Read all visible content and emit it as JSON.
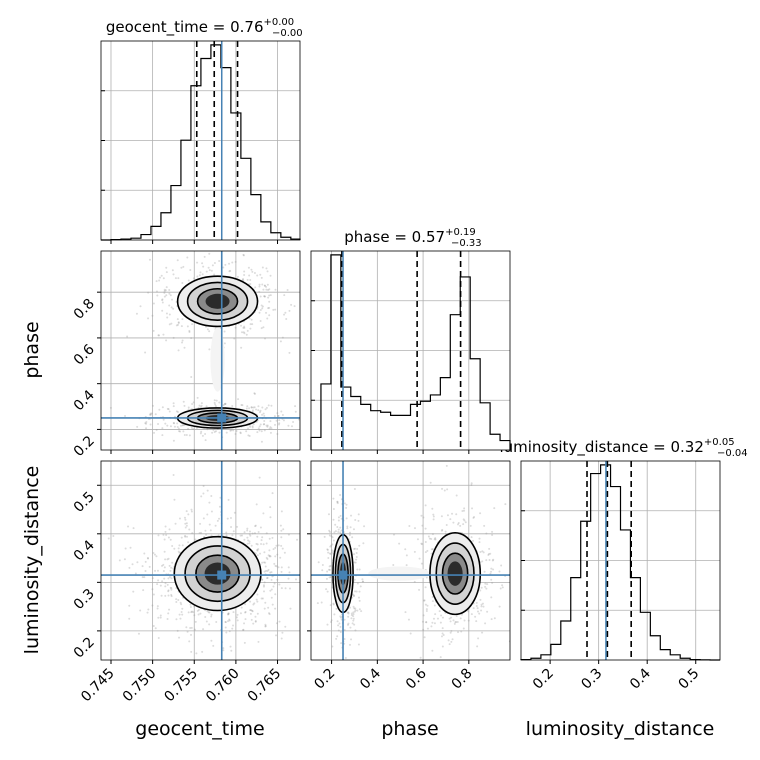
{
  "chart_data": {
    "type": "corner",
    "truth_color": "#4682b4",
    "parameters": [
      "geocent_time",
      "phase",
      "luminosity_distance"
    ],
    "titles": {
      "geocent_time": {
        "name": "geocent_time",
        "median": "0.76",
        "plus": "+0.00",
        "minus": "−0.00"
      },
      "phase": {
        "name": "phase",
        "median": "0.57",
        "plus": "+0.19",
        "minus": "−0.33"
      },
      "luminosity_distance": {
        "name": "luminosity_distance",
        "median": "0.32",
        "plus": "+0.05",
        "minus": "−0.04"
      }
    },
    "axes": {
      "geocent_time": {
        "range": [
          0.7438,
          0.7677
        ],
        "ticks": [
          0.745,
          0.75,
          0.755,
          0.76,
          0.765
        ],
        "tick_labels": [
          "0.745",
          "0.750",
          "0.755",
          "0.760",
          "0.765"
        ]
      },
      "phase": {
        "range": [
          0.11,
          0.98
        ],
        "ticks": [
          0.2,
          0.4,
          0.6,
          0.8
        ],
        "tick_labels": [
          "0.2",
          "0.4",
          "0.6",
          "0.8"
        ]
      },
      "luminosity_distance": {
        "range": [
          0.14,
          0.55
        ],
        "ticks": [
          0.2,
          0.3,
          0.4,
          0.5
        ],
        "tick_labels": [
          "0.2",
          "0.3",
          "0.4",
          "0.5"
        ]
      }
    },
    "truths": {
      "geocent_time": 0.7583,
      "phase": 0.25,
      "luminosity_distance": 0.315
    },
    "quantiles": {
      "geocent_time": [
        0.7553,
        0.7574,
        0.7602
      ],
      "phase": [
        0.245,
        0.574,
        0.764
      ],
      "luminosity_distance": [
        0.276,
        0.318,
        0.367
      ]
    },
    "histograms": {
      "geocent_time": {
        "edges": [
          0.7438,
          0.745,
          0.7462,
          0.7474,
          0.7486,
          0.7498,
          0.751,
          0.7522,
          0.7534,
          0.7546,
          0.7558,
          0.757,
          0.7582,
          0.7594,
          0.7606,
          0.7618,
          0.763,
          0.7642,
          0.7654,
          0.7666,
          0.7677
        ],
        "counts": [
          0.0,
          0.5,
          1,
          2,
          6,
          15,
          30,
          60,
          110,
          170,
          200,
          215,
          190,
          140,
          90,
          50,
          20,
          8,
          3,
          1
        ]
      },
      "phase": {
        "edges": [
          0.11,
          0.1535,
          0.197,
          0.2405,
          0.284,
          0.3275,
          0.371,
          0.4145,
          0.458,
          0.5015,
          0.545,
          0.5885,
          0.632,
          0.6755,
          0.719,
          0.7625,
          0.806,
          0.8495,
          0.893,
          0.9365,
          0.98
        ],
        "counts": [
          0.4,
          2.1,
          6.2,
          2.0,
          1.7,
          1.45,
          1.25,
          1.2,
          1.1,
          1.1,
          1.45,
          1.55,
          1.75,
          2.3,
          4.3,
          5.5,
          2.9,
          1.5,
          0.5,
          0.3
        ]
      },
      "luminosity_distance": {
        "edges": [
          0.14,
          0.1605,
          0.181,
          0.2015,
          0.222,
          0.2425,
          0.263,
          0.2835,
          0.304,
          0.3245,
          0.345,
          0.3655,
          0.386,
          0.4065,
          0.427,
          0.4475,
          0.468,
          0.4885,
          0.509,
          0.5295,
          0.55
        ],
        "counts": [
          0.5,
          2,
          6,
          18,
          45,
          95,
          160,
          215,
          225,
          200,
          150,
          95,
          55,
          28,
          12,
          6,
          2,
          0.5,
          0.2,
          0
        ]
      }
    },
    "modes_2d": {
      "phase_vs_geocent_time": [
        {
          "x": 0.7578,
          "y": 0.76,
          "sx": 0.0024,
          "sy": 0.055,
          "weight": 0.57
        },
        {
          "x": 0.7578,
          "y": 0.25,
          "sx": 0.0024,
          "sy": 0.022,
          "weight": 0.43
        }
      ],
      "luminosity_distance_vs_geocent_time": [
        {
          "x": 0.7578,
          "y": 0.318,
          "sx": 0.0026,
          "sy": 0.038,
          "weight": 1.0
        }
      ],
      "luminosity_distance_vs_phase": [
        {
          "x": 0.25,
          "y": 0.318,
          "sx": 0.022,
          "sy": 0.04,
          "weight": 0.45
        },
        {
          "x": 0.74,
          "y": 0.318,
          "sx": 0.055,
          "sy": 0.042,
          "weight": 0.55
        }
      ]
    },
    "grid": true
  }
}
